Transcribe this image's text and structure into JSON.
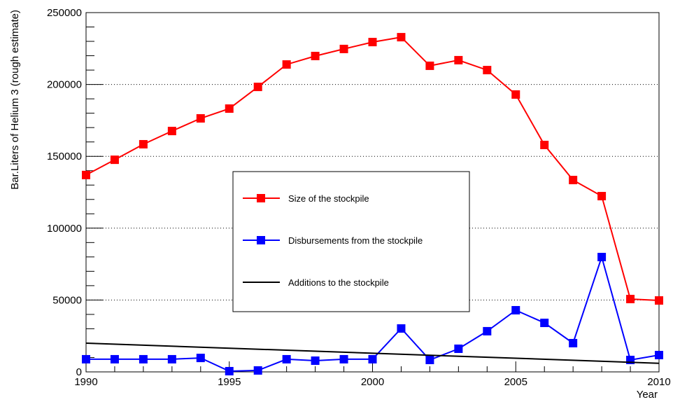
{
  "chart_data": {
    "type": "line",
    "x_label": "Year",
    "y_label": "Bar.Liters of Helium 3 (rough estimate)",
    "x": [
      1990,
      1991,
      1992,
      1993,
      1994,
      1995,
      1996,
      1997,
      1998,
      1999,
      2000,
      2001,
      2002,
      2003,
      2004,
      2005,
      2006,
      2007,
      2008,
      2009,
      2010
    ],
    "series": [
      {
        "name": "Size of the stockpile",
        "color": "#ff0000",
        "marker": "square",
        "values": [
          137000,
          147600,
          158400,
          167600,
          176400,
          183200,
          198300,
          213900,
          219800,
          224700,
          229500,
          232900,
          213000,
          216900,
          210000,
          193000,
          157900,
          133500,
          122300,
          50700,
          49700
        ]
      },
      {
        "name": "Disbursements from the stockpile",
        "color": "#0000ff",
        "marker": "square",
        "values": [
          8800,
          8800,
          8800,
          8800,
          9700,
          500,
          1000,
          8800,
          7800,
          8800,
          8800,
          30200,
          8300,
          16100,
          28300,
          42900,
          34100,
          20000,
          79900,
          8300,
          11700
        ]
      },
      {
        "name": "Additions to the stockpile",
        "color": "#000000",
        "marker": "none",
        "x": [
          1990,
          2010
        ],
        "values": [
          20000,
          6000
        ]
      }
    ],
    "xlim": [
      1990,
      2010
    ],
    "xticks": [
      1990,
      1995,
      2000,
      2005,
      2010
    ],
    "xticks_minor": [
      1991,
      1992,
      1993,
      1994,
      1996,
      1997,
      1998,
      1999,
      2001,
      2002,
      2003,
      2004,
      2006,
      2007,
      2008,
      2009
    ],
    "ylim": [
      0,
      250000
    ],
    "yticks": [
      0,
      50000,
      100000,
      150000,
      200000,
      250000
    ],
    "yticks_minor": [
      10000,
      20000,
      30000,
      40000,
      60000,
      70000,
      80000,
      90000,
      110000,
      120000,
      130000,
      140000,
      160000,
      170000,
      180000,
      190000,
      210000,
      220000,
      230000,
      240000
    ],
    "grid": true,
    "legend": "center"
  }
}
